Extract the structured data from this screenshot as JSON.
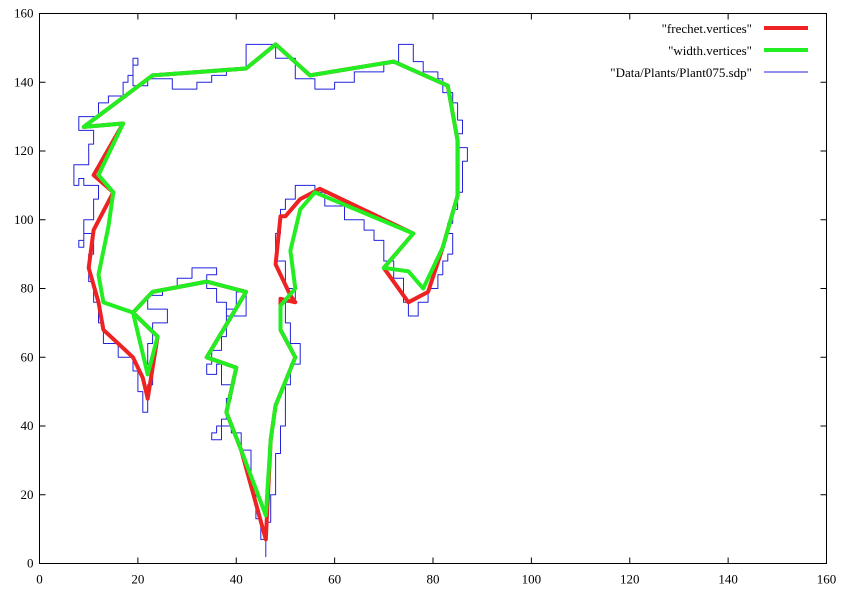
{
  "chart_data": {
    "type": "line",
    "title": "",
    "xlabel": "",
    "ylabel": "",
    "xlim": [
      0,
      160
    ],
    "ylim": [
      0,
      160
    ],
    "x_ticks": [
      "0",
      "20",
      "40",
      "60",
      "80",
      "100",
      "120",
      "140",
      "160"
    ],
    "y_ticks": [
      "0",
      "20",
      "40",
      "60",
      "80",
      "100",
      "120",
      "140",
      "160"
    ],
    "grid": false,
    "legend_position": "top-right",
    "series": [
      {
        "name": "\"frechet.vertices\"",
        "color": "#ee2222",
        "style": "thick",
        "points": [
          [
            22,
            48
          ],
          [
            21,
            54
          ],
          [
            19,
            60
          ],
          [
            13,
            68
          ],
          [
            12,
            76
          ],
          [
            11,
            81
          ],
          [
            10,
            86
          ],
          [
            11,
            97
          ],
          [
            15,
            108
          ],
          [
            11,
            113
          ],
          [
            17,
            128
          ],
          [
            9,
            127
          ],
          [
            23,
            142
          ],
          [
            42,
            144
          ],
          [
            48,
            151
          ],
          [
            55,
            142
          ],
          [
            72,
            146
          ],
          [
            83,
            139
          ],
          [
            85,
            123
          ],
          [
            85,
            107
          ],
          [
            82,
            92
          ],
          [
            79,
            79
          ],
          [
            75,
            76
          ],
          [
            70,
            86
          ],
          [
            76,
            96
          ],
          [
            57,
            109
          ],
          [
            53,
            106
          ],
          [
            50,
            101
          ],
          [
            49,
            101
          ],
          [
            48,
            87
          ],
          [
            51,
            78
          ],
          [
            52,
            76
          ],
          [
            49,
            77
          ],
          [
            49,
            68
          ],
          [
            52,
            60
          ],
          [
            48,
            46
          ],
          [
            47,
            36
          ],
          [
            46,
            7
          ],
          [
            41,
            33
          ],
          [
            38,
            44
          ],
          [
            40,
            57
          ],
          [
            34,
            60
          ],
          [
            42,
            79
          ],
          [
            34,
            82
          ],
          [
            23,
            79
          ],
          [
            19,
            73
          ],
          [
            24,
            66
          ],
          [
            22,
            48
          ]
        ]
      },
      {
        "name": "\"width.vertices\"",
        "color": "#22ee22",
        "style": "thick",
        "points": [
          [
            22,
            55
          ],
          [
            19,
            73
          ],
          [
            13,
            76
          ],
          [
            12,
            84
          ],
          [
            14,
            98
          ],
          [
            15,
            108
          ],
          [
            12,
            113
          ],
          [
            17,
            128
          ],
          [
            9,
            127
          ],
          [
            23,
            142
          ],
          [
            42,
            144
          ],
          [
            48,
            151
          ],
          [
            55,
            142
          ],
          [
            72,
            146
          ],
          [
            83,
            139
          ],
          [
            85,
            123
          ],
          [
            85,
            107
          ],
          [
            82,
            92
          ],
          [
            78,
            80
          ],
          [
            75,
            85
          ],
          [
            70,
            86
          ],
          [
            76,
            96
          ],
          [
            56,
            108
          ],
          [
            53,
            103
          ],
          [
            51,
            91
          ],
          [
            52,
            80
          ],
          [
            49,
            75
          ],
          [
            49,
            68
          ],
          [
            52,
            60
          ],
          [
            48,
            46
          ],
          [
            47,
            36
          ],
          [
            46,
            14
          ],
          [
            41,
            33
          ],
          [
            38,
            44
          ],
          [
            40,
            57
          ],
          [
            34,
            60
          ],
          [
            42,
            79
          ],
          [
            34,
            82
          ],
          [
            23,
            79
          ],
          [
            19,
            73
          ],
          [
            24,
            66
          ],
          [
            22,
            55
          ]
        ]
      },
      {
        "name": "\"Data/Plants/Plant075.sdp\"",
        "color": "#2222dd",
        "style": "thin-step",
        "points": [
          [
            46,
            2
          ],
          [
            46,
            7
          ],
          [
            45,
            7
          ],
          [
            45,
            13
          ],
          [
            44,
            13
          ],
          [
            44,
            23
          ],
          [
            43,
            23
          ],
          [
            43,
            33
          ],
          [
            41,
            33
          ],
          [
            41,
            38
          ],
          [
            39,
            38
          ],
          [
            39,
            40
          ],
          [
            36,
            40
          ],
          [
            36,
            38
          ],
          [
            35,
            38
          ],
          [
            35,
            36
          ],
          [
            37,
            36
          ],
          [
            37,
            42
          ],
          [
            38,
            42
          ],
          [
            38,
            48
          ],
          [
            39,
            48
          ],
          [
            39,
            52
          ],
          [
            37,
            52
          ],
          [
            37,
            58
          ],
          [
            36,
            58
          ],
          [
            36,
            55
          ],
          [
            34,
            55
          ],
          [
            34,
            58
          ],
          [
            35,
            58
          ],
          [
            35,
            62
          ],
          [
            37,
            62
          ],
          [
            37,
            66
          ],
          [
            38,
            66
          ],
          [
            38,
            74
          ],
          [
            40,
            74
          ],
          [
            40,
            79
          ],
          [
            42,
            79
          ],
          [
            42,
            72
          ],
          [
            38,
            72
          ],
          [
            38,
            76
          ],
          [
            36,
            76
          ],
          [
            36,
            80
          ],
          [
            34,
            80
          ],
          [
            34,
            84
          ],
          [
            36,
            84
          ],
          [
            36,
            86
          ],
          [
            31,
            86
          ],
          [
            31,
            83
          ],
          [
            28,
            83
          ],
          [
            28,
            80
          ],
          [
            25,
            80
          ],
          [
            25,
            78
          ],
          [
            22,
            78
          ],
          [
            22,
            74
          ],
          [
            26,
            74
          ],
          [
            26,
            70
          ],
          [
            23,
            70
          ],
          [
            23,
            64
          ],
          [
            22,
            64
          ],
          [
            22,
            58
          ],
          [
            23,
            58
          ],
          [
            23,
            52
          ],
          [
            22,
            52
          ],
          [
            22,
            44
          ],
          [
            21,
            44
          ],
          [
            21,
            50
          ],
          [
            20,
            50
          ],
          [
            20,
            56
          ],
          [
            19,
            56
          ],
          [
            19,
            60
          ],
          [
            16,
            60
          ],
          [
            16,
            64
          ],
          [
            13,
            64
          ],
          [
            13,
            70
          ],
          [
            12,
            70
          ],
          [
            12,
            76
          ],
          [
            11,
            76
          ],
          [
            11,
            82
          ],
          [
            10,
            82
          ],
          [
            10,
            90
          ],
          [
            11,
            90
          ],
          [
            11,
            96
          ],
          [
            9,
            96
          ],
          [
            9,
            94
          ],
          [
            8,
            94
          ],
          [
            8,
            92
          ],
          [
            9,
            92
          ],
          [
            9,
            100
          ],
          [
            11,
            100
          ],
          [
            11,
            106
          ],
          [
            12,
            106
          ],
          [
            12,
            110
          ],
          [
            9,
            110
          ],
          [
            9,
            112
          ],
          [
            8,
            112
          ],
          [
            8,
            110
          ],
          [
            7,
            110
          ],
          [
            7,
            116
          ],
          [
            10,
            116
          ],
          [
            10,
            122
          ],
          [
            11,
            122
          ],
          [
            11,
            126
          ],
          [
            8,
            126
          ],
          [
            8,
            130
          ],
          [
            12,
            130
          ],
          [
            12,
            134
          ],
          [
            14,
            134
          ],
          [
            14,
            136
          ],
          [
            17,
            136
          ],
          [
            17,
            140
          ],
          [
            18,
            140
          ],
          [
            18,
            142
          ],
          [
            19,
            142
          ],
          [
            19,
            145
          ],
          [
            20,
            145
          ],
          [
            20,
            147
          ],
          [
            19,
            147
          ],
          [
            19,
            139
          ],
          [
            22,
            139
          ],
          [
            22,
            141
          ],
          [
            27,
            141
          ],
          [
            27,
            138
          ],
          [
            32,
            138
          ],
          [
            32,
            140
          ],
          [
            35,
            140
          ],
          [
            35,
            142
          ],
          [
            38,
            142
          ],
          [
            38,
            144
          ],
          [
            42,
            144
          ],
          [
            42,
            151
          ],
          [
            48,
            151
          ],
          [
            48,
            147
          ],
          [
            52,
            147
          ],
          [
            52,
            141
          ],
          [
            56,
            141
          ],
          [
            56,
            138
          ],
          [
            60,
            138
          ],
          [
            60,
            140
          ],
          [
            64,
            140
          ],
          [
            64,
            143
          ],
          [
            70,
            143
          ],
          [
            70,
            146
          ],
          [
            73,
            146
          ],
          [
            73,
            151
          ],
          [
            76,
            151
          ],
          [
            76,
            146
          ],
          [
            78,
            146
          ],
          [
            78,
            143
          ],
          [
            81,
            143
          ],
          [
            81,
            141
          ],
          [
            82,
            141
          ],
          [
            82,
            137
          ],
          [
            84,
            137
          ],
          [
            84,
            134
          ],
          [
            85,
            134
          ],
          [
            85,
            129
          ],
          [
            86,
            129
          ],
          [
            86,
            125
          ],
          [
            85,
            125
          ],
          [
            85,
            121
          ],
          [
            87,
            121
          ],
          [
            87,
            117
          ],
          [
            86,
            117
          ],
          [
            86,
            108
          ],
          [
            85,
            108
          ],
          [
            85,
            103
          ],
          [
            84,
            103
          ],
          [
            84,
            99
          ],
          [
            83,
            99
          ],
          [
            83,
            96
          ],
          [
            84,
            96
          ],
          [
            84,
            90
          ],
          [
            83,
            90
          ],
          [
            83,
            88
          ],
          [
            82,
            88
          ],
          [
            82,
            84
          ],
          [
            81,
            84
          ],
          [
            81,
            80
          ],
          [
            79,
            80
          ],
          [
            79,
            76
          ],
          [
            77,
            76
          ],
          [
            77,
            72
          ],
          [
            75,
            72
          ],
          [
            75,
            76
          ],
          [
            74,
            76
          ],
          [
            74,
            83
          ],
          [
            72,
            83
          ],
          [
            72,
            88
          ],
          [
            70,
            88
          ],
          [
            70,
            94
          ],
          [
            68,
            94
          ],
          [
            68,
            97
          ],
          [
            66,
            97
          ],
          [
            66,
            100
          ],
          [
            62,
            100
          ],
          [
            62,
            104
          ],
          [
            58,
            104
          ],
          [
            58,
            108
          ],
          [
            56,
            108
          ],
          [
            56,
            110
          ],
          [
            52,
            110
          ],
          [
            52,
            106
          ],
          [
            50,
            106
          ],
          [
            50,
            103
          ],
          [
            49,
            103
          ],
          [
            49,
            96
          ],
          [
            48,
            96
          ],
          [
            48,
            88
          ],
          [
            50,
            88
          ],
          [
            50,
            80
          ],
          [
            52,
            80
          ],
          [
            52,
            76
          ],
          [
            50,
            76
          ],
          [
            50,
            70
          ],
          [
            51,
            70
          ],
          [
            51,
            64
          ],
          [
            53,
            64
          ],
          [
            53,
            58
          ],
          [
            51,
            58
          ],
          [
            51,
            52
          ],
          [
            50,
            52
          ],
          [
            50,
            40
          ],
          [
            49,
            40
          ],
          [
            49,
            32
          ],
          [
            48,
            32
          ],
          [
            48,
            20
          ],
          [
            47,
            20
          ],
          [
            47,
            12
          ],
          [
            46,
            12
          ],
          [
            46,
            2
          ]
        ]
      }
    ]
  }
}
